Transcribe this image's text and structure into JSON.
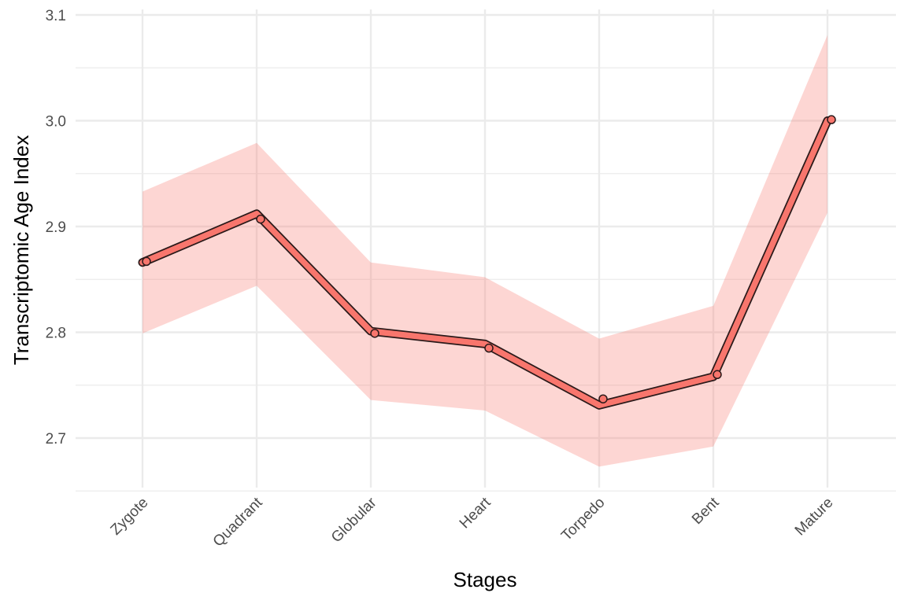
{
  "chart_data": {
    "type": "line",
    "title": "",
    "xlabel": "Stages",
    "ylabel": "Transcriptomic Age Index",
    "categories": [
      "Zygote",
      "Quadrant",
      "Globular",
      "Heart",
      "Torpedo",
      "Bent",
      "Mature"
    ],
    "series": [
      {
        "values": [
          2.866,
          2.912,
          2.801,
          2.789,
          2.731,
          2.758,
          3.0
        ],
        "lower": [
          2.799,
          2.844,
          2.736,
          2.726,
          2.673,
          2.692,
          2.913
        ],
        "upper": [
          2.933,
          2.979,
          2.866,
          2.852,
          2.794,
          2.825,
          3.081
        ]
      }
    ],
    "points": [
      {
        "category": "Zygote",
        "y": 2.867
      },
      {
        "category": "Quadrant",
        "y": 2.907
      },
      {
        "category": "Globular",
        "y": 2.799
      },
      {
        "category": "Heart",
        "y": 2.785
      },
      {
        "category": "Torpedo",
        "y": 2.737
      },
      {
        "category": "Bent",
        "y": 2.76
      },
      {
        "category": "Mature",
        "y": 3.001
      }
    ],
    "yticks": [
      "2.7",
      "2.8",
      "2.9",
      "3.0",
      "3.1"
    ],
    "ylim": [
      2.65,
      3.1
    ],
    "grid": true,
    "legend": "none",
    "colors": {
      "line": "#F8766D",
      "ribbon": "#F8766D",
      "outline": "#2b1a1a",
      "grid": "#ebebeb"
    }
  }
}
